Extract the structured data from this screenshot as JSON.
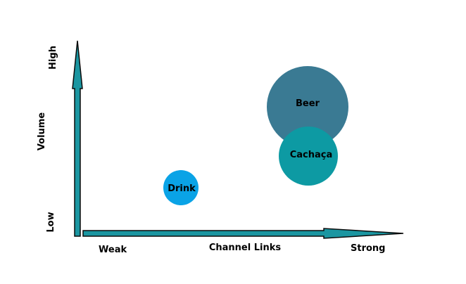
{
  "axes": {
    "x_label": "Channel Links",
    "y_label": "Volume",
    "x_low": "Weak",
    "x_high": "Strong",
    "y_low": "Low",
    "y_high": "High"
  },
  "bubbles": [
    {
      "label": "Beer",
      "color": "#3a7a93"
    },
    {
      "label": "Cachaça",
      "color": "#0d9aa3"
    },
    {
      "label": "Drink",
      "color": "#0aa3e6"
    }
  ],
  "colors": {
    "arrow_fill": "#1b96a1",
    "arrow_stroke": "#0b0b0b"
  }
}
